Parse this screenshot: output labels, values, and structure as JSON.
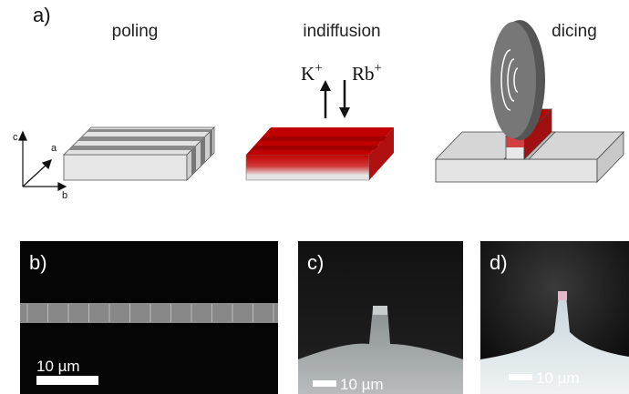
{
  "panel_a": {
    "label": "a)",
    "steps": [
      "poling",
      "indiffusion",
      "dicing"
    ],
    "ions": [
      {
        "ion": "K",
        "charge": "+"
      },
      {
        "ion": "Rb",
        "charge": "+"
      }
    ],
    "axes": [
      "c",
      "a",
      "b"
    ]
  },
  "panel_b": {
    "label": "b)",
    "scale": "10 µm"
  },
  "panel_c": {
    "label": "c)",
    "scale": "10 µm"
  },
  "panel_d": {
    "label": "d)",
    "scale": "10 µm"
  }
}
